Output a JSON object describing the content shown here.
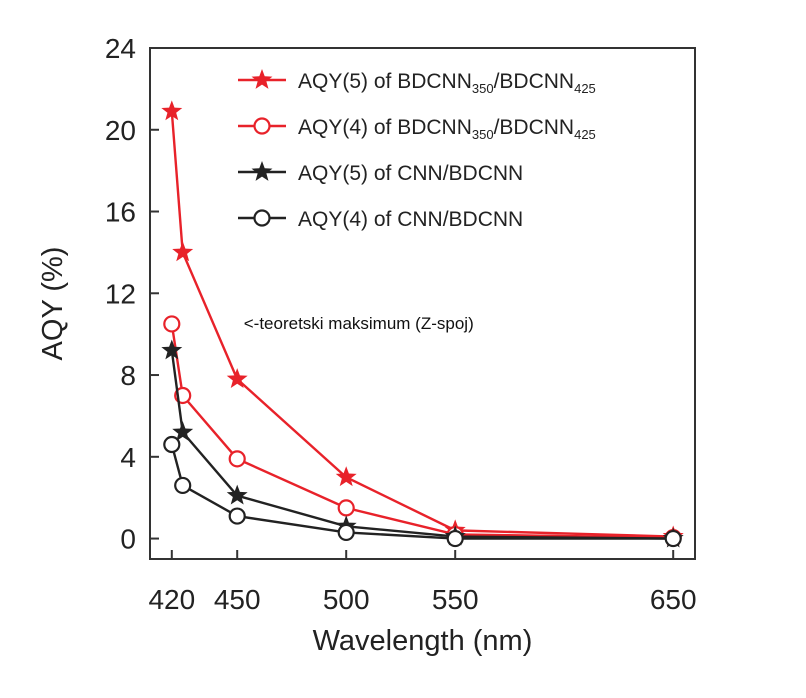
{
  "chart_data": {
    "type": "line",
    "xlabel": "Wavelength (nm)",
    "ylabel": "AQY (%)",
    "x": [
      420,
      425,
      450,
      500,
      550,
      650
    ],
    "xticks": [
      420,
      450,
      500,
      550,
      650
    ],
    "yticks": [
      0,
      4,
      8,
      12,
      16,
      20,
      24
    ],
    "xlim": [
      410,
      660
    ],
    "ylim": [
      -1,
      24
    ],
    "grid": false,
    "legend_position": "top-right",
    "series": [
      {
        "name": "AQY(5) of BDCNN350/BDCNN425",
        "name_parts": {
          "prefix": "AQY(5) of BDCNN",
          "sub1": "350",
          "mid": "/BDCNN",
          "sub2": "425"
        },
        "color": "#e8222a",
        "marker": "star",
        "values": [
          20.9,
          14.0,
          7.8,
          3.0,
          0.4,
          0.1
        ]
      },
      {
        "name": "AQY(4) of BDCNN350/BDCNN425",
        "name_parts": {
          "prefix": "AQY(4) of BDCNN",
          "sub1": "350",
          "mid": "/BDCNN",
          "sub2": "425"
        },
        "color": "#e8222a",
        "marker": "circle",
        "values": [
          10.5,
          7.0,
          3.9,
          1.5,
          0.2,
          0.05
        ]
      },
      {
        "name": "AQY(5) of CNN/BDCNN",
        "color": "#222222",
        "marker": "star",
        "values": [
          9.2,
          5.2,
          2.1,
          0.6,
          0.1,
          0.0
        ]
      },
      {
        "name": "AQY(4) of CNN/BDCNN",
        "color": "#222222",
        "marker": "circle",
        "values": [
          4.6,
          2.6,
          1.1,
          0.3,
          0.0,
          0.0
        ]
      }
    ],
    "annotations": [
      {
        "text": "<-teoretski maksimum (Z-spoj)",
        "x": 453,
        "y": 10.5
      }
    ]
  }
}
